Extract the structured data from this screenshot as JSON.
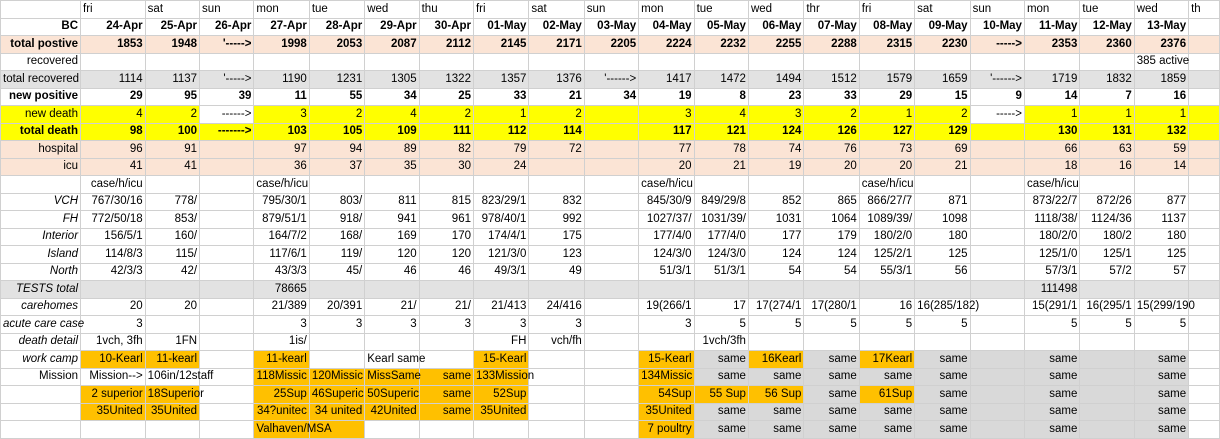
{
  "sheet": {
    "days": [
      "",
      "fri",
      "sat",
      "sun",
      "mon",
      "tue",
      "wed",
      "thu",
      "fri",
      "sat",
      "sun",
      "mon",
      "tue",
      "wed",
      "thr",
      "fri",
      "sat",
      "sun",
      "mon",
      "tue",
      "wed",
      "th"
    ],
    "dates": [
      "BC",
      "24-Apr",
      "25-Apr",
      "26-Apr",
      "27-Apr",
      "28-Apr",
      "29-Apr",
      "30-Apr",
      "01-May",
      "02-May",
      "03-May",
      "04-May",
      "05-May",
      "06-May",
      "07-May",
      "08-May",
      "09-May",
      "10-May",
      "11-May",
      "12-May",
      "13-May",
      ""
    ],
    "rows": [
      {
        "label": "total postive",
        "cells": [
          "1853",
          "1948",
          "'----->",
          "1998",
          "2053",
          "2087",
          "2112",
          "2145",
          "2171",
          "2205",
          "2224",
          "2232",
          "2255",
          "2288",
          "2315",
          "2230",
          "----->",
          "2353",
          "2360",
          "2376",
          ""
        ]
      },
      {
        "label": "recovered",
        "cells": [
          "",
          "",
          "",
          "",
          "",
          "",
          "",
          "",
          "",
          "",
          "",
          "",
          "",
          "",
          "",
          "",
          "",
          "",
          "",
          "385 active",
          ""
        ]
      },
      {
        "label": "total recovered",
        "cells": [
          "1114",
          "1137",
          "'----->",
          "1190",
          "1231",
          "1305",
          "1322",
          "1357",
          "1376",
          "'------>",
          "1417",
          "1472",
          "1494",
          "1512",
          "1579",
          "1659",
          "'------>",
          "1719",
          "1832",
          "1859",
          ""
        ]
      },
      {
        "label": "new positive",
        "cells": [
          "29",
          "95",
          "39",
          "11",
          "55",
          "34",
          "25",
          "33",
          "21",
          "34",
          "19",
          "8",
          "23",
          "33",
          "29",
          "15",
          "9",
          "14",
          "7",
          "16",
          ""
        ]
      },
      {
        "label": "new death",
        "cells": [
          "4",
          "2",
          "------>",
          "3",
          "2",
          "4",
          "2",
          "1",
          "2",
          "",
          "3",
          "4",
          "3",
          "2",
          "1",
          "2",
          "----->",
          "1",
          "1",
          "1",
          ""
        ]
      },
      {
        "label": "total death",
        "cells": [
          "98",
          "100",
          "------->",
          "103",
          "105",
          "109",
          "111",
          "112",
          "114",
          "",
          "117",
          "121",
          "124",
          "126",
          "127",
          "129",
          "",
          "130",
          "131",
          "132",
          ""
        ]
      },
      {
        "label": "hospital",
        "cells": [
          "96",
          "91",
          "",
          "97",
          "94",
          "89",
          "82",
          "79",
          "72",
          "",
          "77",
          "78",
          "74",
          "76",
          "73",
          "69",
          "",
          "66",
          "63",
          "59",
          ""
        ]
      },
      {
        "label": "icu",
        "cells": [
          "41",
          "41",
          "",
          "36",
          "37",
          "35",
          "30",
          "24",
          "",
          "",
          "20",
          "21",
          "19",
          "20",
          "20",
          "21",
          "",
          "18",
          "16",
          "14",
          ""
        ]
      },
      {
        "label": "",
        "cells": [
          "case/h/icu",
          "",
          "",
          "case/h/icu",
          "",
          "",
          "",
          "",
          "",
          "",
          "case/h/icu",
          "",
          "",
          "",
          "case/h/icu",
          "",
          "",
          "case/h/icu",
          "",
          "",
          ""
        ]
      },
      {
        "label": "VCH",
        "cells": [
          "767/30/16",
          "778/",
          "",
          "795/30/1",
          "803/",
          "811",
          "815",
          "823/29/1",
          "832",
          "",
          "845/30/9",
          "849/29/8",
          "852",
          "865",
          "866/27/7",
          "871",
          "",
          "873/22/7",
          "872/26",
          "877",
          ""
        ]
      },
      {
        "label": "FH",
        "cells": [
          "772/50/18",
          "853/",
          "",
          "879/51/1",
          "918/",
          "941",
          "961",
          "978/40/1",
          "992",
          "",
          "1027/37/",
          "1031/39/",
          "1031",
          "1064",
          "1089/39/",
          "1098",
          "",
          "1118/38/",
          "1124/36",
          "1137",
          ""
        ]
      },
      {
        "label": "Interior",
        "cells": [
          "156/5/1",
          "160/",
          "",
          "164/7/2",
          "168/",
          "169",
          "170",
          "174/4/1",
          "175",
          "",
          "177/4/0",
          "177/4/0",
          "177",
          "179",
          "180/2/0",
          "180",
          "",
          "180/2/0",
          "180/2",
          "180",
          ""
        ]
      },
      {
        "label": "Island",
        "cells": [
          "114/8/3",
          "115/",
          "",
          "117/6/1",
          "119/",
          "120",
          "120",
          "121/3/0",
          "123",
          "",
          "124/3/0",
          "124/3/0",
          "124",
          "124",
          "125/2/1",
          "125",
          "",
          "125/1/0",
          "125/1",
          "125",
          ""
        ]
      },
      {
        "label": "North",
        "cells": [
          "42/3/3",
          "42/",
          "",
          "43/3/3",
          "45/",
          "46",
          "46",
          "49/3/1",
          "49",
          "",
          "51/3/1",
          "51/3/1",
          "54",
          "54",
          "55/3/1",
          "56",
          "",
          "57/3/1",
          "57/2",
          "57",
          ""
        ]
      },
      {
        "label": "TESTS total",
        "cells": [
          "",
          "",
          "",
          "78665",
          "",
          "",
          "",
          "",
          "",
          "",
          "",
          "",
          "",
          "",
          "",
          "",
          "",
          "111498",
          "",
          "",
          ""
        ]
      },
      {
        "label": "carehomes",
        "cells": [
          "20",
          "20",
          "",
          "21/389",
          "20/391",
          "21/",
          "21/",
          "21/413",
          "24/416",
          "",
          "19(266/1",
          "17",
          "17(274/1",
          "17(280/1",
          "16",
          "16(285/182)",
          "",
          "15(291/1",
          "16(295/1",
          "15(299/190",
          ""
        ]
      },
      {
        "label": "acute care case",
        "cells": [
          "3",
          "",
          "",
          "3",
          "3",
          "3",
          "3",
          "3",
          "3",
          "",
          "3",
          "5",
          "5",
          "5",
          "5",
          "5",
          "",
          "5",
          "5",
          "5",
          ""
        ]
      },
      {
        "label": "death detail",
        "cells": [
          "1vch, 3fh",
          "1FN",
          "",
          "1is/",
          "",
          "",
          "",
          "FH",
          "vch/fh",
          "",
          "",
          "1vch/3fh",
          "",
          "",
          "",
          "",
          "",
          "",
          "",
          "",
          ""
        ]
      },
      {
        "label": "work camp",
        "cells": [
          "10-Kearl",
          "11-kearl",
          "",
          "11-kearl",
          "",
          "Kearl same",
          "",
          "15-Kearl",
          "",
          "",
          "15-Kearl",
          "same",
          "16Kearl",
          "same",
          "17Kearl",
          "same",
          "",
          "same",
          "",
          "same",
          ""
        ]
      },
      {
        "label": "Mission",
        "cells": [
          "Mission-->",
          "106in/12staff",
          "",
          "118Missic",
          "120Missic",
          "MissSame",
          "same",
          "133Mission",
          "",
          "",
          "134Missic",
          "same",
          "same",
          "same",
          "same",
          "same",
          "",
          "same",
          "",
          "same",
          ""
        ]
      },
      {
        "label": "",
        "cells": [
          "2 superior",
          "18Superior",
          "",
          "25Sup",
          "46Superic",
          "50Superic",
          "same",
          "52Sup",
          "",
          "",
          "54Sup",
          "55 Sup",
          "56 Sup",
          "same",
          "61Sup",
          "same",
          "",
          "same",
          "",
          "same",
          ""
        ]
      },
      {
        "label": "",
        "cells": [
          "35United",
          "35United",
          "",
          "34?unitec",
          "34 united",
          "42United",
          "same",
          "35United",
          "",
          "",
          "35United",
          "same",
          "same",
          "same",
          "same",
          "same",
          "",
          "same",
          "",
          "same",
          ""
        ]
      },
      {
        "label": "",
        "cells": [
          "",
          "",
          "",
          "Valhaven/MSA",
          "",
          "",
          "",
          "",
          "",
          "",
          "7 poultry",
          "same",
          "same",
          "same",
          "same",
          "same",
          "",
          "same",
          "",
          "same",
          ""
        ]
      }
    ]
  }
}
